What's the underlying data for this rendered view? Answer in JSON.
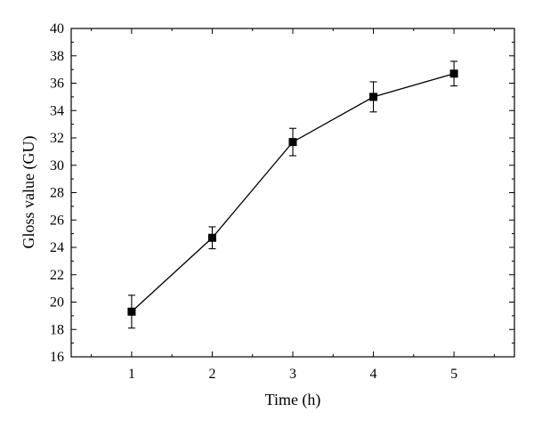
{
  "chart_data": {
    "type": "line",
    "xlabel": "Time (h)",
    "ylabel": "Gloss value (GU)",
    "xlim": [
      0.25,
      5.75
    ],
    "ylim": [
      16,
      40
    ],
    "xticks": [
      1,
      2,
      3,
      4,
      5
    ],
    "xtick_labels": [
      "1",
      "2",
      "3",
      "4",
      "5"
    ],
    "yticks": [
      16,
      18,
      20,
      22,
      24,
      26,
      28,
      30,
      32,
      34,
      36,
      38,
      40
    ],
    "ytick_labels": [
      "16",
      "18",
      "20",
      "22",
      "24",
      "26",
      "28",
      "30",
      "32",
      "34",
      "36",
      "38",
      "40"
    ],
    "grid": false,
    "marker": "square",
    "color": "#000000",
    "series": [
      {
        "x": [
          1,
          2,
          3,
          4,
          5
        ],
        "y": [
          19.3,
          24.7,
          31.7,
          35.0,
          36.7
        ],
        "error": [
          1.2,
          0.8,
          1.0,
          1.1,
          0.9
        ]
      }
    ]
  }
}
